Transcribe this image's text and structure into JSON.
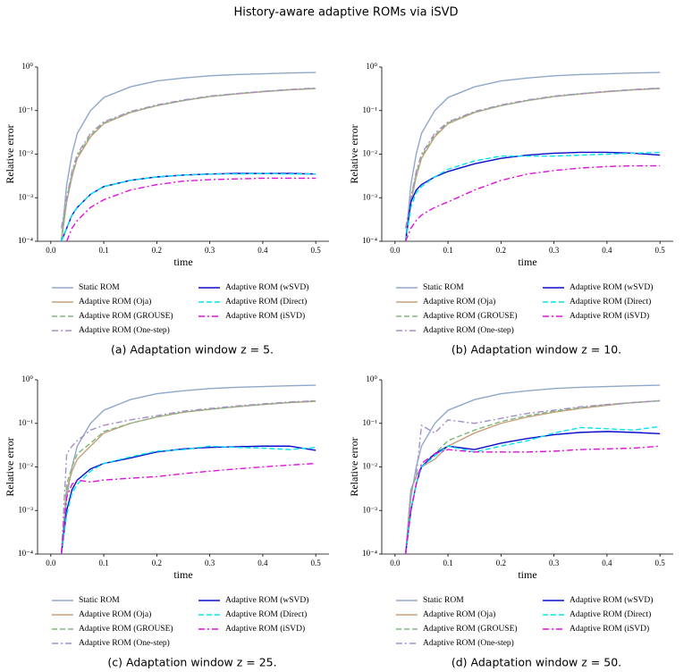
{
  "title": "History-aware adaptive ROMs via iSVD",
  "chart_data": [
    {
      "type": "line",
      "caption": "(a) Adaptation window z = 5.",
      "xlabel": "time",
      "ylabel": "Relative error",
      "log_y": true,
      "x": [
        0.02,
        0.03,
        0.04,
        0.05,
        0.075,
        0.1,
        0.15,
        0.2,
        0.25,
        0.3,
        0.35,
        0.4,
        0.45,
        0.5
      ],
      "xlim": [
        -0.025,
        0.525
      ],
      "ylim": [
        0.0001,
        1
      ],
      "xticks": [
        {
          "value": 0,
          "label": "0.0"
        },
        0.1,
        0.2,
        0.3,
        0.4,
        0.5
      ],
      "yticks": [
        {
          "value": 0.0001,
          "label": "10⁻⁴"
        },
        {
          "value": 0.001,
          "label": "10⁻³"
        },
        {
          "value": 0.01,
          "label": "10⁻²"
        },
        {
          "value": 0.1,
          "label": "10⁻¹"
        },
        {
          "value": 1,
          "label": "10⁰"
        }
      ],
      "series": [
        {
          "name": "Static ROM",
          "color": "#8fa8c8",
          "linestyle": "solid",
          "values": [
            0.0001,
            0.002,
            0.01,
            0.03,
            0.1,
            0.2,
            0.35,
            0.48,
            0.56,
            0.63,
            0.67,
            0.7,
            0.73,
            0.75
          ]
        },
        {
          "name": "Adaptive ROM (Oja)",
          "color": "#c8a07a",
          "linestyle": "solid",
          "values": [
            0.0001,
            0.0008,
            0.003,
            0.008,
            0.025,
            0.05,
            0.09,
            0.13,
            0.17,
            0.21,
            0.24,
            0.27,
            0.3,
            0.32
          ]
        },
        {
          "name": "Adaptive ROM (GROUSE)",
          "color": "#7fb87f",
          "linestyle": "dashed",
          "values": [
            0.0001,
            0.0009,
            0.0035,
            0.009,
            0.027,
            0.052,
            0.092,
            0.13,
            0.17,
            0.21,
            0.245,
            0.275,
            0.3,
            0.325
          ]
        },
        {
          "name": "Adaptive ROM (One-step)",
          "color": "#a58fc8",
          "linestyle": "dashdot",
          "values": [
            0.0002,
            0.001,
            0.004,
            0.01,
            0.03,
            0.055,
            0.095,
            0.135,
            0.175,
            0.215,
            0.245,
            0.275,
            0.305,
            0.33
          ]
        },
        {
          "name": "Adaptive ROM (wSVD)",
          "color": "#0a0acc",
          "linestyle": "solid",
          "values": [
            0.0001,
            0.0002,
            0.0004,
            0.0006,
            0.0012,
            0.0018,
            0.0025,
            0.003,
            0.0033,
            0.0035,
            0.0036,
            0.0036,
            0.0036,
            0.0035
          ]
        },
        {
          "name": "Adaptive ROM (Direct)",
          "color": "#00e5ee",
          "linestyle": "dashed",
          "values": [
            0.0001,
            0.0002,
            0.0004,
            0.0006,
            0.0012,
            0.0018,
            0.0025,
            0.003,
            0.0033,
            0.0035,
            0.0035,
            0.0036,
            0.0035,
            0.0035
          ]
        },
        {
          "name": "Adaptive ROM (iSVD)",
          "color": "#e010e0",
          "linestyle": "dashdot",
          "values": [
            null,
            0.0001,
            0.0002,
            0.0003,
            0.0006,
            0.0009,
            0.0015,
            0.002,
            0.0024,
            0.0026,
            0.0027,
            0.0028,
            0.0028,
            0.0028
          ]
        }
      ]
    },
    {
      "type": "line",
      "caption": "(b) Adaptation window z = 10.",
      "xlabel": "time",
      "ylabel": "Relative error",
      "log_y": true,
      "x": [
        0.02,
        0.03,
        0.04,
        0.05,
        0.075,
        0.1,
        0.15,
        0.2,
        0.25,
        0.3,
        0.35,
        0.4,
        0.45,
        0.5
      ],
      "xlim": [
        -0.025,
        0.525
      ],
      "ylim": [
        0.0001,
        1
      ],
      "xticks": [
        {
          "value": 0,
          "label": "0.0"
        },
        0.1,
        0.2,
        0.3,
        0.4,
        0.5
      ],
      "yticks": [
        {
          "value": 0.0001,
          "label": "10⁻⁴"
        },
        {
          "value": 0.001,
          "label": "10⁻³"
        },
        {
          "value": 0.01,
          "label": "10⁻²"
        },
        {
          "value": 0.1,
          "label": "10⁻¹"
        },
        {
          "value": 1,
          "label": "10⁰"
        }
      ],
      "series": [
        {
          "name": "Static ROM",
          "color": "#8fa8c8",
          "linestyle": "solid",
          "values": [
            0.0001,
            0.002,
            0.01,
            0.03,
            0.1,
            0.2,
            0.35,
            0.48,
            0.56,
            0.63,
            0.67,
            0.7,
            0.73,
            0.75
          ]
        },
        {
          "name": "Adaptive ROM (Oja)",
          "color": "#c8a07a",
          "linestyle": "solid",
          "values": [
            0.0001,
            0.0008,
            0.003,
            0.008,
            0.025,
            0.05,
            0.09,
            0.13,
            0.17,
            0.21,
            0.24,
            0.27,
            0.3,
            0.32
          ]
        },
        {
          "name": "Adaptive ROM (GROUSE)",
          "color": "#7fb87f",
          "linestyle": "dashed",
          "values": [
            0.0001,
            0.0009,
            0.0035,
            0.009,
            0.027,
            0.052,
            0.092,
            0.13,
            0.17,
            0.21,
            0.245,
            0.275,
            0.3,
            0.325
          ]
        },
        {
          "name": "Adaptive ROM (One-step)",
          "color": "#a58fc8",
          "linestyle": "dashdot",
          "values": [
            0.0002,
            0.001,
            0.004,
            0.01,
            0.03,
            0.055,
            0.095,
            0.135,
            0.175,
            0.215,
            0.245,
            0.275,
            0.305,
            0.33
          ]
        },
        {
          "name": "Adaptive ROM (wSVD)",
          "color": "#0a0acc",
          "linestyle": "solid",
          "values": [
            0.0001,
            0.0008,
            0.0015,
            0.002,
            0.003,
            0.004,
            0.006,
            0.008,
            0.0095,
            0.0105,
            0.011,
            0.011,
            0.0105,
            0.0095
          ]
        },
        {
          "name": "Adaptive ROM (Direct)",
          "color": "#00e5ee",
          "linestyle": "dashed",
          "values": [
            0.0001,
            0.0006,
            0.0013,
            0.0018,
            0.003,
            0.0045,
            0.007,
            0.009,
            0.009,
            0.009,
            0.0095,
            0.01,
            0.0105,
            0.011
          ]
        },
        {
          "name": "Adaptive ROM (iSVD)",
          "color": "#e010e0",
          "linestyle": "dashdot",
          "values": [
            0.0001,
            0.0002,
            0.0003,
            0.0004,
            0.0006,
            0.0008,
            0.0015,
            0.0025,
            0.0035,
            0.0042,
            0.0048,
            0.0052,
            0.0054,
            0.0054
          ]
        }
      ]
    },
    {
      "type": "line",
      "caption": "(c) Adaptation window z = 25.",
      "xlabel": "time",
      "ylabel": "Relative error",
      "log_y": true,
      "x": [
        0.02,
        0.03,
        0.04,
        0.05,
        0.075,
        0.1,
        0.15,
        0.2,
        0.25,
        0.3,
        0.35,
        0.4,
        0.45,
        0.5
      ],
      "xlim": [
        -0.025,
        0.525
      ],
      "ylim": [
        0.0001,
        1
      ],
      "xticks": [
        {
          "value": 0,
          "label": "0.0"
        },
        0.1,
        0.2,
        0.3,
        0.4,
        0.5
      ],
      "yticks": [
        {
          "value": 0.0001,
          "label": "10⁻⁴"
        },
        {
          "value": 0.001,
          "label": "10⁻³"
        },
        {
          "value": 0.01,
          "label": "10⁻²"
        },
        {
          "value": 0.1,
          "label": "10⁻¹"
        },
        {
          "value": 1,
          "label": "10⁰"
        }
      ],
      "series": [
        {
          "name": "Static ROM",
          "color": "#8fa8c8",
          "linestyle": "solid",
          "values": [
            0.0001,
            0.002,
            0.01,
            0.03,
            0.1,
            0.2,
            0.35,
            0.48,
            0.56,
            0.63,
            0.67,
            0.7,
            0.73,
            0.75
          ]
        },
        {
          "name": "Adaptive ROM (Oja)",
          "color": "#c8a07a",
          "linestyle": "solid",
          "values": [
            0.0001,
            0.003,
            0.008,
            0.015,
            0.03,
            0.06,
            0.1,
            0.14,
            0.18,
            0.21,
            0.24,
            0.27,
            0.3,
            0.32
          ]
        },
        {
          "name": "Adaptive ROM (GROUSE)",
          "color": "#7fb87f",
          "linestyle": "dashed",
          "values": [
            0.0001,
            0.004,
            0.01,
            0.02,
            0.035,
            0.065,
            0.1,
            0.14,
            0.18,
            0.21,
            0.24,
            0.27,
            0.3,
            0.33
          ]
        },
        {
          "name": "Adaptive ROM (One-step)",
          "color": "#a58fc8",
          "linestyle": "dashdot",
          "values": [
            0.0001,
            0.02,
            0.03,
            0.04,
            0.07,
            0.09,
            0.12,
            0.15,
            0.19,
            0.22,
            0.25,
            0.28,
            0.31,
            0.33
          ]
        },
        {
          "name": "Adaptive ROM (wSVD)",
          "color": "#0a0acc",
          "linestyle": "solid",
          "values": [
            0.0001,
            0.001,
            0.003,
            0.005,
            0.009,
            0.012,
            0.016,
            0.022,
            0.026,
            0.028,
            0.029,
            0.03,
            0.03,
            0.024
          ]
        },
        {
          "name": "Adaptive ROM (Direct)",
          "color": "#00e5ee",
          "linestyle": "dashed",
          "values": [
            0.0001,
            0.0008,
            0.0025,
            0.004,
            0.008,
            0.012,
            0.017,
            0.023,
            0.025,
            0.03,
            0.028,
            0.027,
            0.025,
            0.028
          ]
        },
        {
          "name": "Adaptive ROM (iSVD)",
          "color": "#e010e0",
          "linestyle": "dashdot",
          "values": [
            0.0001,
            0.002,
            0.004,
            0.005,
            0.0045,
            0.005,
            0.0055,
            0.006,
            0.007,
            0.008,
            0.009,
            0.01,
            0.011,
            0.012
          ]
        }
      ]
    },
    {
      "type": "line",
      "caption": "(d) Adaptation window z = 50.",
      "xlabel": "time",
      "ylabel": "Relative error",
      "log_y": true,
      "x": [
        0.02,
        0.03,
        0.04,
        0.05,
        0.075,
        0.1,
        0.15,
        0.2,
        0.25,
        0.3,
        0.35,
        0.4,
        0.45,
        0.5
      ],
      "xlim": [
        -0.025,
        0.525
      ],
      "ylim": [
        0.0001,
        1
      ],
      "xticks": [
        {
          "value": 0,
          "label": "0.0"
        },
        0.1,
        0.2,
        0.3,
        0.4,
        0.5
      ],
      "yticks": [
        {
          "value": 0.0001,
          "label": "10⁻⁴"
        },
        {
          "value": 0.001,
          "label": "10⁻³"
        },
        {
          "value": 0.01,
          "label": "10⁻²"
        },
        {
          "value": 0.1,
          "label": "10⁻¹"
        },
        {
          "value": 1,
          "label": "10⁰"
        }
      ],
      "series": [
        {
          "name": "Static ROM",
          "color": "#8fa8c8",
          "linestyle": "solid",
          "values": [
            0.0001,
            0.002,
            0.01,
            0.03,
            0.1,
            0.2,
            0.35,
            0.48,
            0.56,
            0.63,
            0.67,
            0.7,
            0.73,
            0.75
          ]
        },
        {
          "name": "Adaptive ROM (Oja)",
          "color": "#c8a07a",
          "linestyle": "solid",
          "values": [
            0.0001,
            0.003,
            0.006,
            0.01,
            0.015,
            0.03,
            0.06,
            0.1,
            0.14,
            0.18,
            0.22,
            0.26,
            0.3,
            0.33
          ]
        },
        {
          "name": "Adaptive ROM (GROUSE)",
          "color": "#7fb87f",
          "linestyle": "dashed",
          "values": [
            0.0001,
            0.003,
            0.006,
            0.01,
            0.02,
            0.04,
            0.07,
            0.11,
            0.15,
            0.19,
            0.23,
            0.27,
            0.3,
            0.33
          ]
        },
        {
          "name": "Adaptive ROM (One-step)",
          "color": "#a58fc8",
          "linestyle": "dashdot",
          "values": [
            0.0001,
            0.003,
            0.006,
            0.09,
            0.06,
            0.12,
            0.1,
            0.13,
            0.17,
            0.2,
            0.24,
            0.27,
            0.3,
            0.33
          ]
        },
        {
          "name": "Adaptive ROM (wSVD)",
          "color": "#0a0acc",
          "linestyle": "solid",
          "values": [
            0.0001,
            0.001,
            0.004,
            0.01,
            0.02,
            0.03,
            0.025,
            0.035,
            0.045,
            0.055,
            0.062,
            0.065,
            0.062,
            0.058
          ]
        },
        {
          "name": "Adaptive ROM (Direct)",
          "color": "#00e5ee",
          "linestyle": "dashed",
          "values": [
            0.0001,
            0.001,
            0.004,
            0.01,
            0.018,
            0.03,
            0.022,
            0.03,
            0.04,
            0.06,
            0.08,
            0.075,
            0.07,
            0.085
          ]
        },
        {
          "name": "Adaptive ROM (iSVD)",
          "color": "#e010e0",
          "linestyle": "dashdot",
          "values": [
            0.0001,
            0.001,
            0.004,
            0.012,
            0.02,
            0.025,
            0.022,
            0.022,
            0.022,
            0.023,
            0.025,
            0.026,
            0.027,
            0.03
          ]
        }
      ]
    }
  ]
}
